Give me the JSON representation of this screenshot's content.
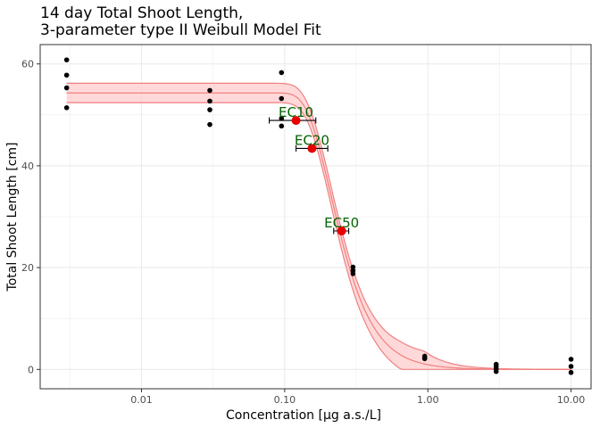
{
  "chart_data": {
    "type": "scatter",
    "title_line1": "14 day Total Shoot Length,",
    "title_line2": "3-parameter type II Weibull Model Fit",
    "xlabel": "Concentration [µg a.s./L]",
    "ylabel": "Total Shoot Length [cm]",
    "x_scale": "log10",
    "xlim": [
      0.00196,
      13.8
    ],
    "ylim": [
      -3.8,
      63.8
    ],
    "x_ticks": [
      0.01,
      0.1,
      1.0,
      10.0
    ],
    "x_tick_labels": [
      "0.01",
      "0.10",
      "1.00",
      "10.00"
    ],
    "y_ticks": [
      0,
      20,
      40,
      60
    ],
    "y_tick_labels": [
      "0",
      "20",
      "40",
      "60"
    ],
    "grid": true,
    "points": [
      {
        "x": 0.003,
        "y": 60.8
      },
      {
        "x": 0.003,
        "y": 57.8
      },
      {
        "x": 0.003,
        "y": 55.3
      },
      {
        "x": 0.003,
        "y": 51.4
      },
      {
        "x": 0.03,
        "y": 54.8
      },
      {
        "x": 0.03,
        "y": 52.7
      },
      {
        "x": 0.03,
        "y": 51.0
      },
      {
        "x": 0.03,
        "y": 48.1
      },
      {
        "x": 0.095,
        "y": 58.3
      },
      {
        "x": 0.095,
        "y": 53.2
      },
      {
        "x": 0.095,
        "y": 49.3
      },
      {
        "x": 0.095,
        "y": 47.8
      },
      {
        "x": 0.3,
        "y": 20.1
      },
      {
        "x": 0.3,
        "y": 19.4
      },
      {
        "x": 0.3,
        "y": 18.8
      },
      {
        "x": 0.95,
        "y": 2.6
      },
      {
        "x": 0.95,
        "y": 2.3
      },
      {
        "x": 0.95,
        "y": 2.1
      },
      {
        "x": 3.0,
        "y": 1.0
      },
      {
        "x": 3.0,
        "y": 0.6
      },
      {
        "x": 3.0,
        "y": 0.1
      },
      {
        "x": 3.0,
        "y": -0.4
      },
      {
        "x": 10.0,
        "y": 2.0
      },
      {
        "x": 10.0,
        "y": 0.6
      },
      {
        "x": 10.0,
        "y": -0.6
      }
    ],
    "model": {
      "name": "3-parameter type II Weibull",
      "upper": 54.3,
      "b": -2.6,
      "e": 0.21,
      "upper_ci": [
        52.4,
        56.2
      ],
      "x_range": [
        0.003,
        10.0
      ]
    },
    "ec_points": [
      {
        "label": "EC10",
        "x": 0.12,
        "y": 48.9,
        "x_lower": 0.078,
        "x_upper": 0.165
      },
      {
        "label": "EC20",
        "x": 0.155,
        "y": 43.4,
        "x_lower": 0.12,
        "x_upper": 0.2
      },
      {
        "label": "EC50",
        "x": 0.25,
        "y": 27.2,
        "x_lower": 0.22,
        "x_upper": 0.28
      }
    ],
    "colors": {
      "band_fill": "#ffcccc",
      "band_line": "#f08080",
      "fit_line": "#f08080",
      "ec_point": "#e60000",
      "ec_label": "#006400",
      "data_point": "#000000",
      "grid": "#ebebeb",
      "panel_border": "#333333"
    }
  }
}
